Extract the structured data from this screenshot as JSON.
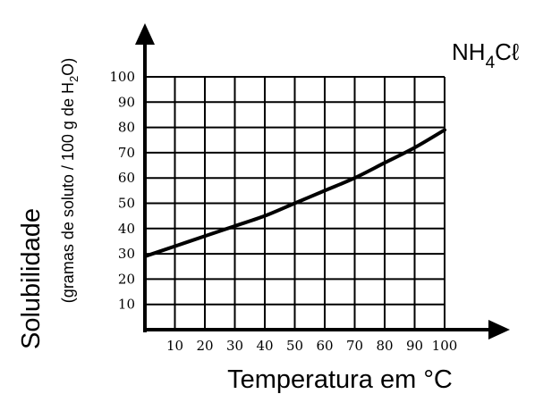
{
  "chart_data": {
    "type": "line",
    "title": "",
    "xlabel": "Temperatura em °C",
    "ylabel": "Solubilidade",
    "ylabel_sub_prefix": "(gramas de soluto / 100 g de H",
    "ylabel_sub_sub": "2",
    "ylabel_sub_suffix": "O)",
    "series_label_main": "NH",
    "series_label_sub": "4",
    "series_label_end": "Cℓ",
    "xlim": [
      0,
      100
    ],
    "ylim": [
      0,
      100
    ],
    "x_ticks": [
      "10",
      "20",
      "30",
      "40",
      "50",
      "60",
      "70",
      "80",
      "90",
      "100"
    ],
    "y_ticks": [
      "10",
      "20",
      "30",
      "40",
      "50",
      "60",
      "70",
      "80",
      "90",
      "100"
    ],
    "grid": true,
    "series": [
      {
        "name": "NH4Cℓ",
        "x": [
          0,
          10,
          20,
          30,
          40,
          50,
          60,
          70,
          80,
          90,
          100
        ],
        "y": [
          29,
          33,
          37,
          41,
          45,
          50,
          55,
          60,
          66,
          72,
          79
        ]
      }
    ]
  }
}
